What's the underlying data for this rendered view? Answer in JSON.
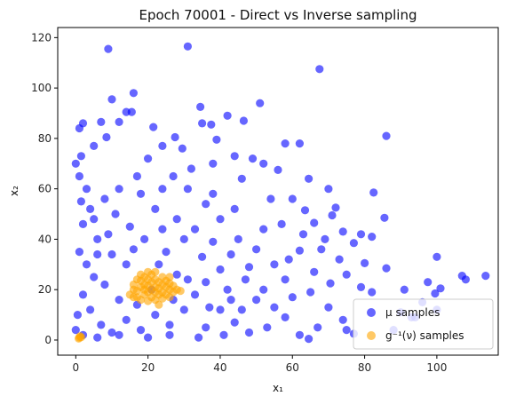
{
  "chart_data": {
    "type": "scatter",
    "title": "Epoch 70001 - Direct vs Inverse sampling",
    "xlabel": "x₁",
    "ylabel": "x₂",
    "xlim": [
      -5,
      117
    ],
    "ylim": [
      -6,
      124
    ],
    "xticks": [
      0,
      20,
      40,
      60,
      80,
      100
    ],
    "yticks": [
      0,
      20,
      40,
      60,
      80,
      100,
      120
    ],
    "legend_position": "lower-right",
    "grid": false,
    "series": [
      {
        "name": "μ samples",
        "color": "#0000ff",
        "alpha": 0.6,
        "points": [
          [
            9,
            115.5
          ],
          [
            31,
            116.5
          ],
          [
            67.5,
            107.5
          ],
          [
            16,
            98
          ],
          [
            10,
            95.5
          ],
          [
            34.5,
            92.5
          ],
          [
            14,
            90.5
          ],
          [
            15.5,
            90.5
          ],
          [
            51,
            94
          ],
          [
            42,
            89
          ],
          [
            46.5,
            87
          ],
          [
            2,
            86
          ],
          [
            1,
            84
          ],
          [
            7,
            86.5
          ],
          [
            12,
            86.5
          ],
          [
            35,
            86
          ],
          [
            37.5,
            85.5
          ],
          [
            21.5,
            84.5
          ],
          [
            86,
            81
          ],
          [
            8.5,
            80.5
          ],
          [
            27.5,
            80.5
          ],
          [
            39,
            79.5
          ],
          [
            58,
            78
          ],
          [
            62,
            78
          ],
          [
            5,
            77
          ],
          [
            24,
            77
          ],
          [
            29.5,
            76
          ],
          [
            44,
            73
          ],
          [
            1.5,
            73
          ],
          [
            0,
            70
          ],
          [
            49,
            72
          ],
          [
            52,
            70
          ],
          [
            56,
            67.5
          ],
          [
            64.5,
            64
          ],
          [
            70,
            60
          ],
          [
            82.5,
            58.5
          ],
          [
            60,
            56
          ],
          [
            72,
            52.5
          ],
          [
            63.5,
            51.5
          ],
          [
            71,
            49.5
          ],
          [
            85.5,
            48.5
          ],
          [
            66,
            46.5
          ],
          [
            74,
            43
          ],
          [
            79,
            42
          ],
          [
            82,
            41
          ],
          [
            69,
            40
          ],
          [
            77,
            38.5
          ],
          [
            62,
            35.5
          ],
          [
            73,
            32
          ],
          [
            80,
            30.5
          ],
          [
            86,
            28.5
          ],
          [
            66,
            27
          ],
          [
            75,
            26
          ],
          [
            70.5,
            22.5
          ],
          [
            79,
            21
          ],
          [
            82,
            19
          ],
          [
            91,
            20
          ],
          [
            100,
            33
          ],
          [
            108,
            24
          ],
          [
            107,
            25.5
          ],
          [
            113.5,
            25.5
          ],
          [
            99.5,
            18.5
          ],
          [
            101,
            20.5
          ],
          [
            97.5,
            23
          ],
          [
            90,
            11
          ],
          [
            93,
            9
          ],
          [
            100,
            12
          ],
          [
            96,
            15
          ],
          [
            88,
            4
          ],
          [
            94,
            9
          ],
          [
            70,
            13
          ],
          [
            74,
            8
          ],
          [
            75,
            4
          ],
          [
            77,
            2.5
          ],
          [
            64.5,
            0.5
          ],
          [
            62,
            2
          ],
          [
            67,
            5
          ],
          [
            58,
            9
          ],
          [
            55,
            13
          ],
          [
            53,
            5
          ],
          [
            48,
            3
          ],
          [
            44,
            7
          ],
          [
            40,
            12
          ],
          [
            36,
            5
          ],
          [
            58,
            24
          ],
          [
            55,
            30
          ],
          [
            50,
            36
          ],
          [
            45,
            40
          ],
          [
            40,
            48
          ],
          [
            36,
            54
          ],
          [
            31,
            60
          ],
          [
            27,
            65
          ],
          [
            20,
            72
          ],
          [
            17,
            65
          ],
          [
            12,
            60
          ],
          [
            8,
            56
          ],
          [
            4,
            52
          ],
          [
            2,
            46
          ],
          [
            6,
            40
          ],
          [
            10,
            34
          ],
          [
            14,
            30
          ],
          [
            25,
            35
          ],
          [
            30,
            40
          ],
          [
            35,
            33
          ],
          [
            40,
            28
          ],
          [
            47,
            24
          ],
          [
            52,
            20
          ],
          [
            60,
            17
          ],
          [
            65,
            19
          ],
          [
            3,
            30
          ],
          [
            5,
            25
          ],
          [
            2,
            18
          ],
          [
            4,
            12
          ],
          [
            7,
            6
          ],
          [
            10,
            3
          ],
          [
            14,
            8
          ],
          [
            18,
            4
          ],
          [
            22,
            10
          ],
          [
            26,
            6
          ],
          [
            30,
            12
          ],
          [
            33,
            18
          ],
          [
            28,
            26
          ],
          [
            23,
            30
          ],
          [
            19,
            40
          ],
          [
            15,
            45
          ],
          [
            11,
            50
          ],
          [
            22,
            52
          ],
          [
            28,
            48
          ],
          [
            33,
            44
          ],
          [
            38,
            39
          ],
          [
            43,
            34
          ],
          [
            48,
            29
          ],
          [
            42,
            20
          ],
          [
            36,
            23
          ],
          [
            12,
            16
          ],
          [
            8,
            22
          ],
          [
            6,
            34
          ],
          [
            3,
            60
          ],
          [
            1,
            65
          ],
          [
            18,
            58
          ],
          [
            24,
            60
          ],
          [
            32,
            68
          ],
          [
            38,
            70
          ],
          [
            46,
            64
          ],
          [
            54,
            56
          ],
          [
            57,
            46
          ],
          [
            63,
            42
          ],
          [
            68,
            36
          ],
          [
            59,
            32
          ],
          [
            52,
            44
          ],
          [
            44,
            52
          ],
          [
            38,
            58
          ],
          [
            0.5,
            10
          ],
          [
            1,
            35
          ],
          [
            1.5,
            55
          ],
          [
            0,
            4
          ],
          [
            2,
            2
          ],
          [
            6,
            1
          ],
          [
            12,
            2
          ],
          [
            20,
            1
          ],
          [
            26,
            2
          ],
          [
            34,
            1
          ],
          [
            41,
            2
          ],
          [
            46,
            12
          ],
          [
            50,
            16
          ],
          [
            24,
            44
          ],
          [
            16,
            36
          ],
          [
            9,
            42
          ],
          [
            5,
            48
          ],
          [
            21,
            20
          ],
          [
            17,
            14
          ],
          [
            27,
            16
          ],
          [
            31,
            24
          ],
          [
            37,
            13
          ],
          [
            43,
            16
          ]
        ]
      },
      {
        "name": "g⁻¹(ν) samples",
        "color": "#ffa500",
        "alpha": 0.6,
        "points": [
          [
            15,
            18
          ],
          [
            16,
            20
          ],
          [
            16,
            22
          ],
          [
            17,
            17
          ],
          [
            17,
            19.5
          ],
          [
            17,
            24
          ],
          [
            18,
            16
          ],
          [
            18,
            21
          ],
          [
            18,
            23.5
          ],
          [
            19,
            18
          ],
          [
            19,
            20
          ],
          [
            19,
            22
          ],
          [
            19,
            25
          ],
          [
            20,
            15.5
          ],
          [
            20,
            19
          ],
          [
            20,
            21.5
          ],
          [
            20,
            24
          ],
          [
            21,
            17
          ],
          [
            21,
            20
          ],
          [
            21,
            23
          ],
          [
            21,
            26
          ],
          [
            22,
            16
          ],
          [
            22,
            19
          ],
          [
            22,
            21
          ],
          [
            22,
            24
          ],
          [
            23,
            18
          ],
          [
            23,
            20.5
          ],
          [
            23,
            23
          ],
          [
            24,
            16.5
          ],
          [
            24,
            19
          ],
          [
            24,
            22
          ],
          [
            24,
            25
          ],
          [
            25,
            18
          ],
          [
            25,
            21
          ],
          [
            25,
            23.5
          ],
          [
            26,
            17
          ],
          [
            26,
            20
          ],
          [
            26,
            22.5
          ],
          [
            27,
            19
          ],
          [
            27,
            21.5
          ],
          [
            28,
            20
          ],
          [
            29,
            19.5
          ],
          [
            23,
            14
          ],
          [
            20,
            27
          ],
          [
            22,
            27
          ],
          [
            18,
            26
          ],
          [
            26,
            25
          ],
          [
            16,
            17
          ],
          [
            1,
            1
          ],
          [
            1.2,
            1.5
          ],
          [
            0.8,
            0.6
          ],
          [
            1.5,
            1.1
          ]
        ]
      }
    ]
  }
}
